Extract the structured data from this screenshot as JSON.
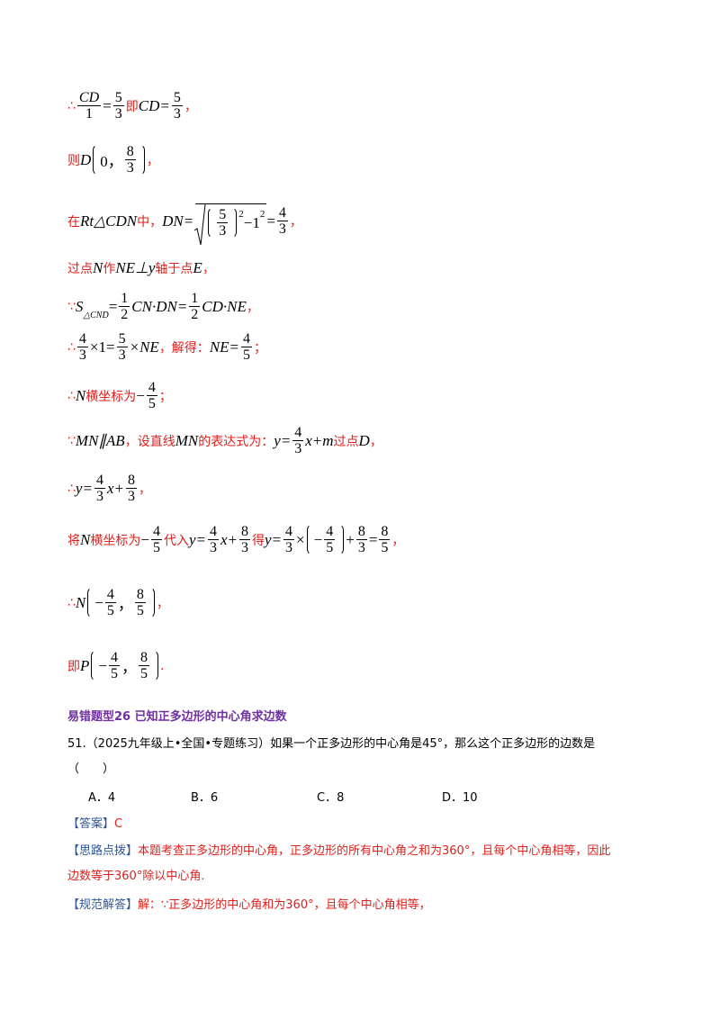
{
  "lines": [
    {
      "parts": [
        {
          "r": "∴"
        },
        {
          "f": [
            "CD",
            "1"
          ]
        },
        {
          "m": "="
        },
        {
          "f": [
            "5",
            "3"
          ]
        },
        {
          "r": "即"
        },
        {
          "m": "CD="
        },
        {
          "f": [
            "5",
            "3"
          ]
        },
        {
          "r": "，"
        }
      ]
    },
    {
      "parts": [
        {
          "r": "则"
        },
        {
          "m": "D"
        },
        {
          "p": [
            {
              "m": "0，"
            },
            {
              "f": [
                "8",
                "3"
              ]
            }
          ]
        },
        {
          "r": "，"
        }
      ]
    },
    {
      "parts": [
        {
          "r": "在"
        },
        {
          "m": "Rt△CDN"
        },
        {
          "r": "中，"
        },
        {
          "m": "DN="
        },
        {
          "sqrt": [
            {
              "p": [
                {
                  "f": [
                    "5",
                    "3"
                  ]
                }
              ]
            },
            {
              "sup": "2"
            },
            {
              "m": "−1"
            },
            {
              "sup": "2"
            }
          ]
        },
        {
          "m": "="
        },
        {
          "f": [
            "4",
            "3"
          ]
        },
        {
          "r": "，"
        }
      ]
    },
    {
      "parts": [
        {
          "r": "过点"
        },
        {
          "m": "N"
        },
        {
          "r": " 作"
        },
        {
          "m": "NE⊥y"
        },
        {
          "r": "轴于点"
        },
        {
          "m": "E"
        },
        {
          "r": "，"
        }
      ]
    },
    {
      "parts": [
        {
          "r": "∵"
        },
        {
          "m": "S"
        },
        {
          "sub": "△CND"
        },
        {
          "m": "="
        },
        {
          "f": [
            "1",
            "2"
          ]
        },
        {
          "m": "CN·DN="
        },
        {
          "f": [
            "1",
            "2"
          ]
        },
        {
          "m": "CD·NE"
        },
        {
          "r": " ，"
        }
      ]
    },
    {
      "parts": [
        {
          "r": "∴"
        },
        {
          "f": [
            "4",
            "3"
          ]
        },
        {
          "m": "×1="
        },
        {
          "f": [
            "5",
            "3"
          ]
        },
        {
          "m": "×NE"
        },
        {
          "r": "，解得："
        },
        {
          "m": "NE="
        },
        {
          "f": [
            "4",
            "5"
          ]
        },
        {
          "r": "；"
        }
      ]
    },
    {
      "parts": [
        {
          "r": "∴"
        },
        {
          "m": "N"
        },
        {
          "r": "横坐标为 "
        },
        {
          "m": "−"
        },
        {
          "f": [
            "4",
            "5"
          ]
        },
        {
          "r": "；"
        }
      ]
    },
    {
      "parts": [
        {
          "r": "∵"
        },
        {
          "m": "MN∥AB"
        },
        {
          "r": "，设直线"
        },
        {
          "m": "MN"
        },
        {
          "r": "的表达式为："
        },
        {
          "m": "y="
        },
        {
          "f": [
            "4",
            "3"
          ]
        },
        {
          "m": "x+m"
        },
        {
          "r": "过点"
        },
        {
          "m": "D"
        },
        {
          "r": "，"
        }
      ]
    },
    {
      "parts": [
        {
          "r": "∴"
        },
        {
          "m": "y="
        },
        {
          "f": [
            "4",
            "3"
          ]
        },
        {
          "m": "x+"
        },
        {
          "f": [
            "8",
            "3"
          ]
        },
        {
          "r": "，"
        }
      ]
    },
    {
      "parts": [
        {
          "r": "将"
        },
        {
          "m": "N"
        },
        {
          "r": "横坐标为 "
        },
        {
          "m": "−"
        },
        {
          "f": [
            "4",
            "5"
          ]
        },
        {
          "r": "代入"
        },
        {
          "m": "y="
        },
        {
          "f": [
            "4",
            "3"
          ]
        },
        {
          "m": "x+"
        },
        {
          "f": [
            "8",
            "3"
          ]
        },
        {
          "r": "得"
        },
        {
          "m": "y="
        },
        {
          "f": [
            "4",
            "3"
          ]
        },
        {
          "m": "×"
        },
        {
          "p": [
            {
              "m": "−"
            },
            {
              "f": [
                "4",
                "5"
              ]
            }
          ]
        },
        {
          "m": "+"
        },
        {
          "f": [
            "8",
            "3"
          ]
        },
        {
          "m": "="
        },
        {
          "f": [
            "8",
            "5"
          ]
        },
        {
          "r": " ，"
        }
      ]
    },
    {
      "parts": [
        {
          "r": "∴"
        },
        {
          "m": "N"
        },
        {
          "p": [
            {
              "m": "−"
            },
            {
              "f": [
                "4",
                "5"
              ]
            },
            {
              "m": "，"
            },
            {
              "f": [
                "8",
                "5"
              ]
            }
          ]
        },
        {
          "r": "，"
        }
      ]
    },
    {
      "parts": [
        {
          "r": "即"
        },
        {
          "m": "P"
        },
        {
          "p": [
            {
              "m": "−"
            },
            {
              "f": [
                "4",
                "5"
              ]
            },
            {
              "m": "，"
            },
            {
              "f": [
                "8",
                "5"
              ]
            }
          ]
        },
        {
          "r": "."
        }
      ]
    }
  ],
  "section": {
    "heading": "易错题型26 已知正多边形的中心角求边数",
    "question": "51.（2025九年级上•全国•专题练习）如果一个正多边形的中心角是45°，那么这个正多边形的边数是",
    "blank": "（　　）",
    "options": [
      "A．4",
      "B．6",
      "C．8",
      "D．10"
    ],
    "answer_label": "【答案】",
    "answer": "C",
    "hint_label": "【思路点拨】",
    "hint_lines": [
      "本题考查正多边形的中心角，正多边形的所有中心角之和为360°，且每个中心角相等，因此",
      "边数等于360°除以中心角."
    ],
    "solution_label": "【规范解答】",
    "solution": "解：∵正多边形的中心角和为360°，且每个中心角相等，"
  }
}
